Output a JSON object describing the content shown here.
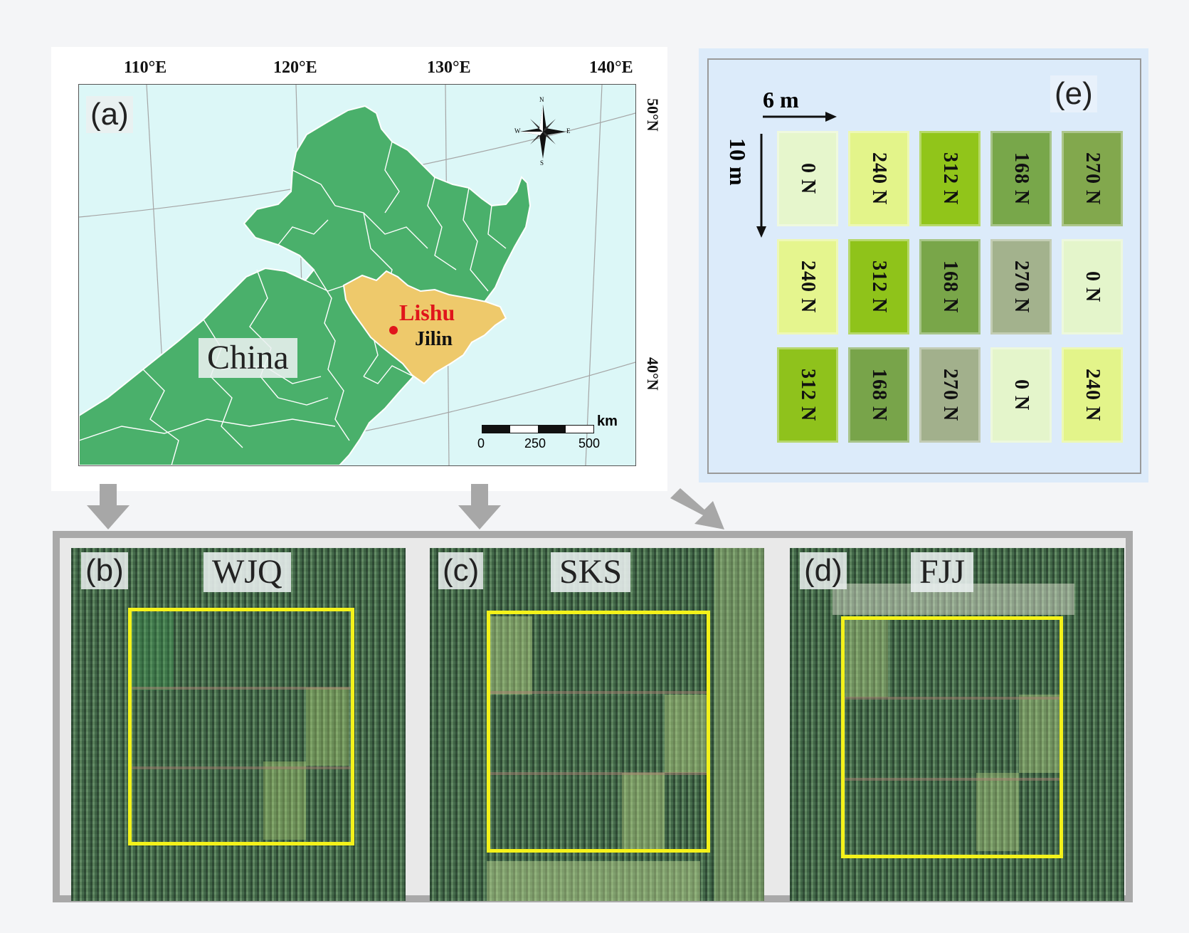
{
  "panel_a": {
    "tag": "(a)",
    "lon_labels": [
      "110°E",
      "120°E",
      "130°E",
      "140°E"
    ],
    "lat_labels": [
      "50°N",
      "40°N"
    ],
    "country_label": "China",
    "province_label": "Jilin",
    "site_label": "Lishu",
    "compass": {
      "n": "N",
      "s": "S",
      "e": "E",
      "w": "W"
    },
    "scale": {
      "unit": "km",
      "ticks": [
        "0",
        "250",
        "500"
      ]
    },
    "colors": {
      "sea": "#dcf7f7",
      "land": "#4ab06b",
      "jilin": "#eec96b",
      "site": "#e0151b"
    }
  },
  "panel_e": {
    "tag": "(e)",
    "width_label": "6 m",
    "length_label": "10 m",
    "rows": [
      [
        {
          "label": "0 N",
          "color": "#e6f6cc"
        },
        {
          "label": "240 N",
          "color": "#e3f48a"
        },
        {
          "label": "312 N",
          "color": "#91c51a"
        },
        {
          "label": "168 N",
          "color": "#78a74a"
        },
        {
          "label": "270 N",
          "color": "#82a84d"
        }
      ],
      [
        {
          "label": "240 N",
          "color": "#e5f58e"
        },
        {
          "label": "312 N",
          "color": "#8fc31a"
        },
        {
          "label": "168 N",
          "color": "#79a649"
        },
        {
          "label": "270 N",
          "color": "#a3b28d"
        },
        {
          "label": "0 N",
          "color": "#e4f5cb"
        }
      ],
      [
        {
          "label": "312 N",
          "color": "#8fc21c"
        },
        {
          "label": "168 N",
          "color": "#78a44a"
        },
        {
          "label": "270 N",
          "color": "#a2b08c"
        },
        {
          "label": "0 N",
          "color": "#e4f5cb"
        },
        {
          "label": "240 N",
          "color": "#e3f48a"
        }
      ]
    ]
  },
  "panels_bottom": [
    {
      "tag": "(b)",
      "title": "WJQ"
    },
    {
      "tag": "(c)",
      "title": "SKS"
    },
    {
      "tag": "(d)",
      "title": "FJJ"
    }
  ]
}
